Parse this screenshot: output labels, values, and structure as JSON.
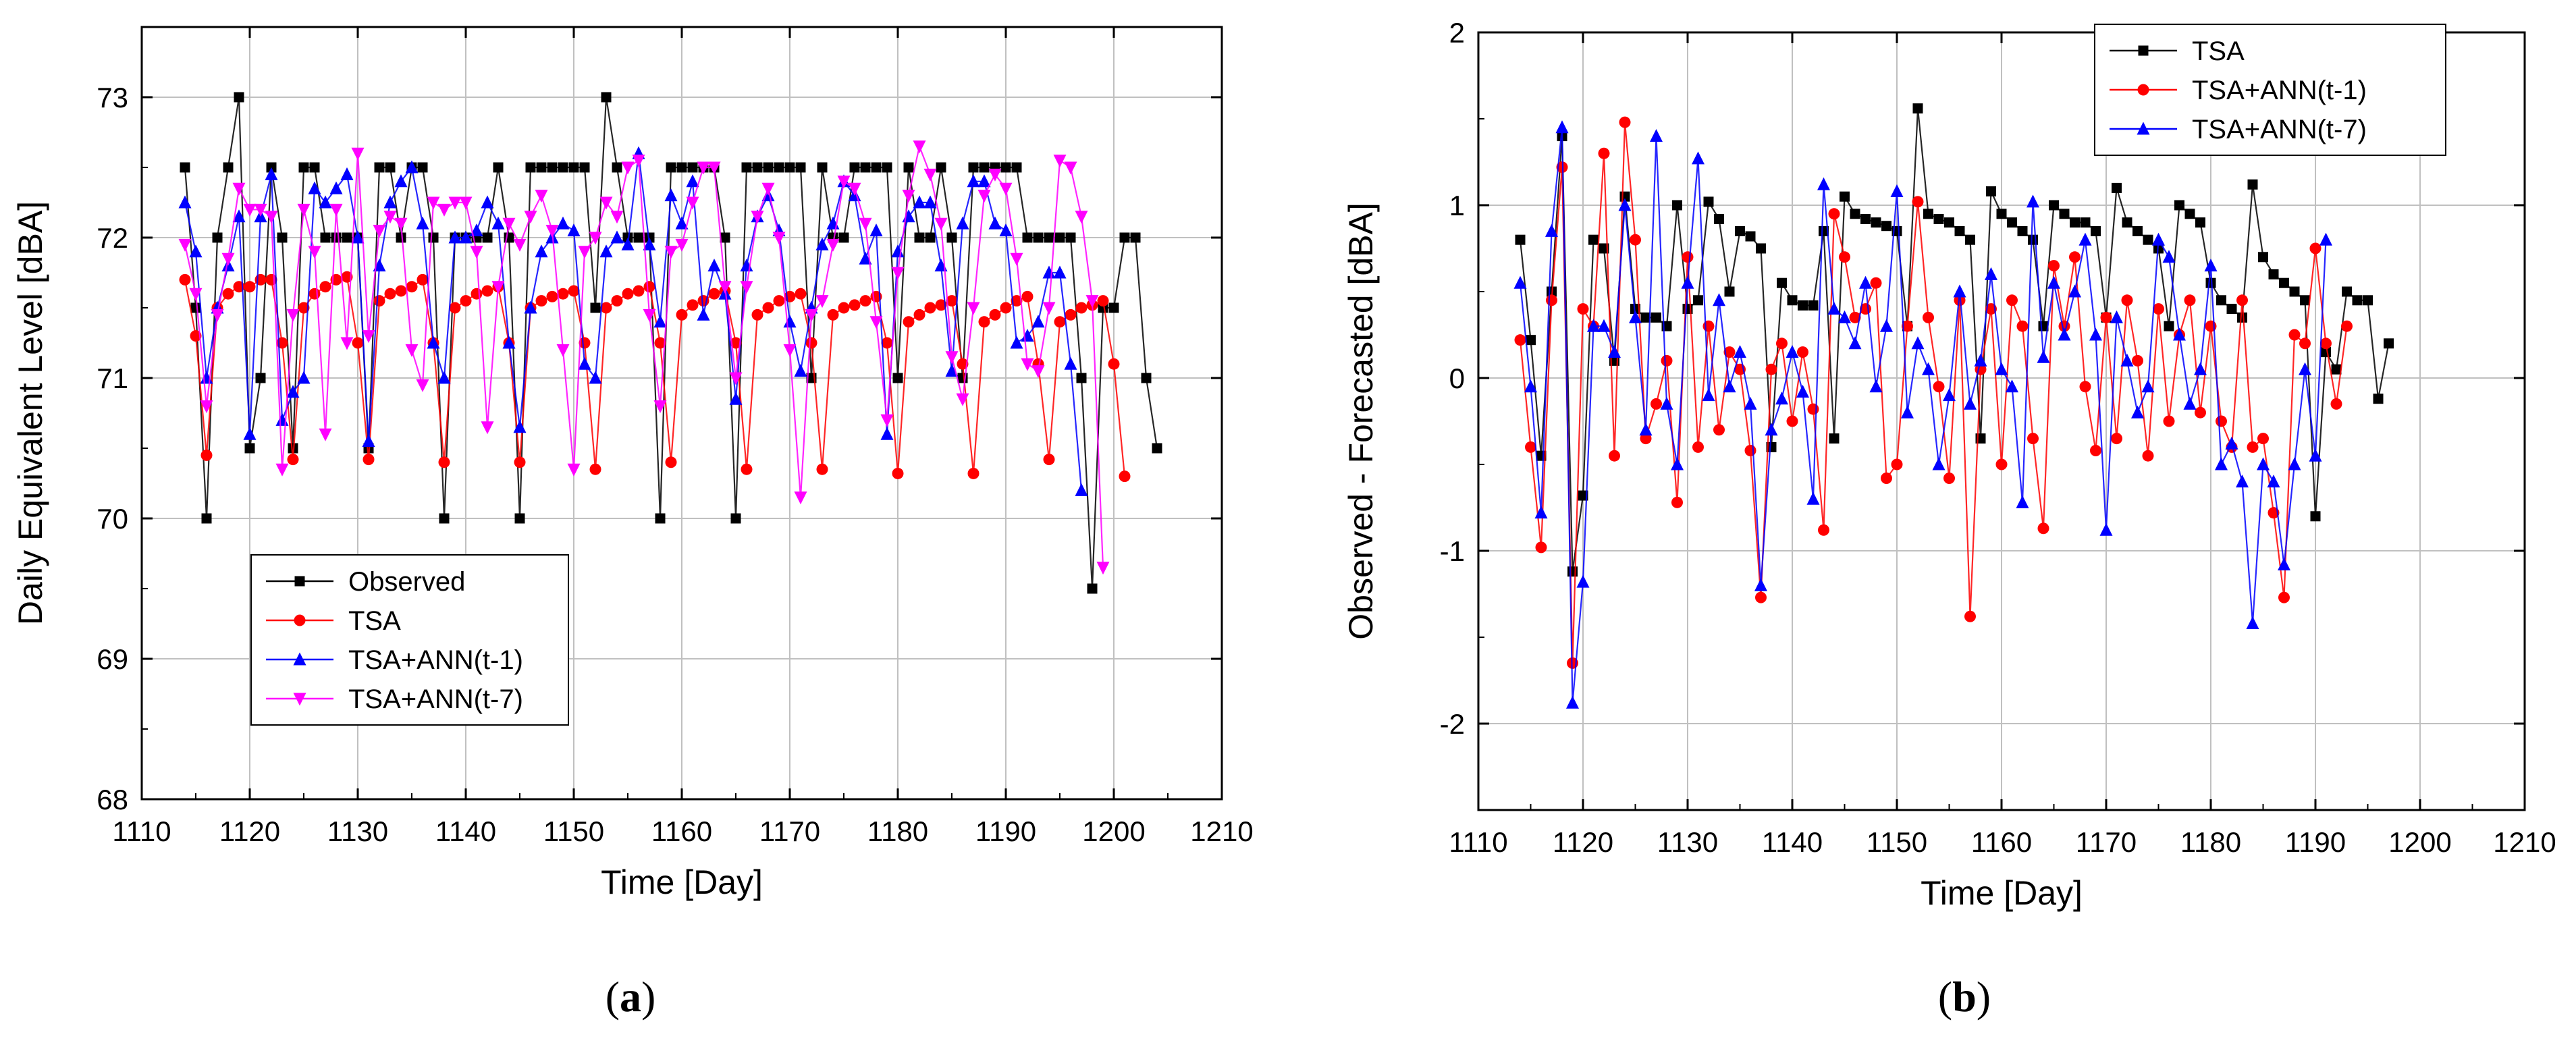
{
  "captions": {
    "a": "a",
    "b": "b"
  },
  "colors": {
    "observed": "#000000",
    "tsa": "#ff0000",
    "ann1": "#0000ff",
    "ann7": "#ff00ff",
    "grid": "#c0c0c0"
  },
  "chart_data": [
    {
      "type": "line",
      "title": "",
      "xlabel": "Time [Day]",
      "ylabel": "Daily Equivalent Level [dBA]",
      "xlim": [
        1110,
        1210
      ],
      "ylim": [
        68,
        73.5
      ],
      "xticks": [
        1110,
        1120,
        1130,
        1140,
        1150,
        1160,
        1170,
        1180,
        1190,
        1200,
        1210
      ],
      "yticks": [
        68,
        69,
        70,
        71,
        72,
        73
      ],
      "grid": true,
      "legend_position": "bottom-left",
      "x_start": 1114,
      "series": [
        {
          "name": "Observed",
          "color": "#000000",
          "marker": "square",
          "values": [
            72.5,
            71.5,
            70,
            72,
            72.5,
            73,
            70.5,
            71,
            72.5,
            72,
            70.5,
            72.5,
            72.5,
            72,
            72,
            72,
            72,
            70.5,
            72.5,
            72.5,
            72,
            72.5,
            72.5,
            72,
            70,
            72,
            72,
            72,
            72,
            72.5,
            72,
            70,
            72.5,
            72.5,
            72.5,
            72.5,
            72.5,
            72.5,
            71.5,
            73,
            72.5,
            72,
            72,
            72,
            70,
            72.5,
            72.5,
            72.5,
            72.5,
            72.5,
            72,
            70,
            72.5,
            72.5,
            72.5,
            72.5,
            72.5,
            72.5,
            71,
            72.5,
            72,
            72,
            72.5,
            72.5,
            72.5,
            72.5,
            71,
            72.5,
            72,
            72,
            72.5,
            72,
            71,
            72.5,
            72.5,
            72.5,
            72.5,
            72.5,
            72,
            72,
            72,
            72,
            72,
            71,
            69.5,
            71.5,
            71.5,
            72,
            72,
            71,
            70.5
          ]
        },
        {
          "name": "TSA",
          "color": "#ff0000",
          "marker": "circle",
          "values": [
            71.7,
            71.3,
            70.45,
            71.5,
            71.6,
            71.65,
            71.65,
            71.7,
            71.7,
            71.25,
            70.42,
            71.5,
            71.6,
            71.65,
            71.7,
            71.72,
            71.25,
            70.42,
            71.55,
            71.6,
            71.62,
            71.65,
            71.7,
            71.25,
            70.4,
            71.5,
            71.55,
            71.6,
            71.62,
            71.65,
            71.25,
            70.4,
            71.5,
            71.55,
            71.58,
            71.6,
            71.62,
            71.25,
            70.35,
            71.5,
            71.55,
            71.6,
            71.62,
            71.65,
            71.25,
            70.4,
            71.45,
            71.52,
            71.55,
            71.6,
            71.62,
            71.25,
            70.35,
            71.45,
            71.5,
            71.55,
            71.58,
            71.6,
            71.25,
            70.35,
            71.45,
            71.5,
            71.52,
            71.55,
            71.58,
            71.25,
            70.32,
            71.4,
            71.45,
            71.5,
            71.52,
            71.55,
            71.1,
            70.32,
            71.4,
            71.45,
            71.5,
            71.55,
            71.58,
            71.1,
            70.42,
            71.4,
            71.45,
            71.5,
            71.52,
            71.55,
            71.1,
            70.3
          ]
        },
        {
          "name": "TSA+ANN(t-1)",
          "color": "#0000ff",
          "marker": "triangle-up",
          "values": [
            72.25,
            71.9,
            71,
            71.5,
            71.8,
            72.15,
            70.6,
            72.15,
            72.45,
            70.7,
            70.9,
            71,
            72.35,
            72.25,
            72.35,
            72.45,
            72,
            70.55,
            71.8,
            72.25,
            72.4,
            72.5,
            72.1,
            71.25,
            71,
            72,
            72,
            72.05,
            72.25,
            72.1,
            71.25,
            70.65,
            71.5,
            71.9,
            72,
            72.1,
            72.05,
            71.1,
            71,
            71.9,
            72,
            71.95,
            72.6,
            71.95,
            71.4,
            72.3,
            72.1,
            72.4,
            71.45,
            71.8,
            71.6,
            70.85,
            71.8,
            72.15,
            72.3,
            72.05,
            71.4,
            71.05,
            71.5,
            71.95,
            72.1,
            72.4,
            72.3,
            71.85,
            72.05,
            70.6,
            71.9,
            72.15,
            72.25,
            72.25,
            71.8,
            71.05,
            72.1,
            72.4,
            72.4,
            72.1,
            72.05,
            71.25,
            71.3,
            71.4,
            71.75,
            71.75,
            71.1,
            70.2
          ]
        },
        {
          "name": "TSA+ANN(t-7)",
          "color": "#ff00ff",
          "marker": "triangle-down",
          "values": [
            71.95,
            71.6,
            70.8,
            71.45,
            71.85,
            72.35,
            72.2,
            72.2,
            72.15,
            70.35,
            71.45,
            72.2,
            71.9,
            70.6,
            72.2,
            71.25,
            72.6,
            71.3,
            72.05,
            72.15,
            72.1,
            71.2,
            70.95,
            72.25,
            72.2,
            72.25,
            72.25,
            71.9,
            70.65,
            71.65,
            72.1,
            71.95,
            72.15,
            72.3,
            72.05,
            71.2,
            70.35,
            71.9,
            72.0,
            72.25,
            72.15,
            72.5,
            72.55,
            71.45,
            70.8,
            71.9,
            71.95,
            72.25,
            72.5,
            72.5,
            71.65,
            71.0,
            71.65,
            72.15,
            72.35,
            72.0,
            71.2,
            70.15,
            71.45,
            71.55,
            71.95,
            72.4,
            72.35,
            72.1,
            71.4,
            70.7,
            71.75,
            72.3,
            72.65,
            72.45,
            72.1,
            71.15,
            70.85,
            71.5,
            72.3,
            72.45,
            72.35,
            71.85,
            71.1,
            71.05,
            71.5,
            72.55,
            72.5,
            72.15,
            71.55,
            69.65
          ]
        }
      ]
    },
    {
      "type": "line",
      "title": "",
      "xlabel": "Time [Day]",
      "ylabel": "Observed - Forecasted [dBA]",
      "xlim": [
        1110,
        1210
      ],
      "ylim": [
        -2.5,
        2
      ],
      "xticks": [
        1110,
        1120,
        1130,
        1140,
        1150,
        1160,
        1170,
        1180,
        1190,
        1200,
        1210
      ],
      "yticks": [
        -2,
        -1,
        0,
        1,
        2
      ],
      "grid": true,
      "legend_position": "top-right",
      "x_start": 1114,
      "series": [
        {
          "name": "TSA",
          "color": "#000000",
          "marker": "square",
          "values": [
            0.8,
            0.22,
            -0.45,
            0.5,
            1.4,
            -1.12,
            -0.68,
            0.8,
            0.75,
            0.1,
            1.05,
            0.4,
            0.35,
            0.35,
            0.3,
            1.0,
            0.4,
            0.45,
            1.02,
            0.92,
            0.5,
            0.85,
            0.82,
            0.75,
            -0.4,
            0.55,
            0.45,
            0.42,
            0.42,
            0.85,
            -0.35,
            1.05,
            0.95,
            0.92,
            0.9,
            0.88,
            0.85,
            0.3,
            1.56,
            0.95,
            0.92,
            0.9,
            0.85,
            0.8,
            -0.35,
            1.08,
            0.95,
            0.9,
            0.85,
            0.8,
            0.3,
            1.0,
            0.95,
            0.9,
            0.9,
            0.85,
            0.35,
            1.1,
            0.9,
            0.85,
            0.8,
            0.75,
            0.3,
            1.0,
            0.95,
            0.9,
            0.55,
            0.45,
            0.4,
            0.35,
            1.12,
            0.7,
            0.6,
            0.55,
            0.5,
            0.45,
            -0.8,
            0.15,
            0.05,
            0.5,
            0.45,
            0.45,
            -0.12,
            0.2
          ]
        },
        {
          "name": "TSA+ANN(t-1)",
          "color": "#ff0000",
          "marker": "circle",
          "values": [
            0.22,
            -0.4,
            -0.98,
            0.45,
            1.22,
            -1.65,
            0.4,
            0.3,
            1.3,
            -0.45,
            1.48,
            0.8,
            -0.35,
            -0.15,
            0.1,
            -0.72,
            0.7,
            -0.4,
            0.3,
            -0.3,
            0.15,
            0.05,
            -0.42,
            -1.27,
            0.05,
            0.2,
            -0.25,
            0.15,
            -0.18,
            -0.88,
            0.95,
            0.7,
            0.35,
            0.4,
            0.55,
            -0.58,
            -0.5,
            0.3,
            1.02,
            0.35,
            -0.05,
            -0.58,
            0.45,
            -1.38,
            0.05,
            0.4,
            -0.5,
            0.45,
            0.3,
            -0.35,
            -0.87,
            0.65,
            0.3,
            0.7,
            -0.05,
            -0.42,
            0.35,
            -0.35,
            0.45,
            0.1,
            -0.45,
            0.4,
            -0.25,
            0.25,
            0.45,
            -0.2,
            0.3,
            -0.25,
            -0.4,
            0.45,
            -0.4,
            -0.35,
            -0.78,
            -1.27,
            0.25,
            0.2,
            0.75,
            0.2,
            -0.15,
            0.3
          ]
        },
        {
          "name": "TSA+ANN(t-7)",
          "color": "#0000ff",
          "marker": "triangle-up",
          "values": [
            0.55,
            -0.05,
            -0.78,
            0.85,
            1.45,
            -1.88,
            -1.18,
            0.3,
            0.3,
            0.15,
            1.0,
            0.35,
            -0.3,
            1.4,
            -0.15,
            -0.5,
            0.55,
            1.27,
            -0.1,
            0.45,
            -0.05,
            0.15,
            -0.15,
            -1.2,
            -0.3,
            -0.12,
            0.15,
            -0.08,
            -0.7,
            1.12,
            0.4,
            0.35,
            0.2,
            0.55,
            -0.05,
            0.3,
            1.08,
            -0.2,
            0.2,
            0.05,
            -0.5,
            -0.1,
            0.5,
            -0.15,
            0.1,
            0.6,
            0.05,
            -0.05,
            -0.72,
            1.02,
            0.12,
            0.55,
            0.25,
            0.5,
            0.8,
            0.25,
            -0.88,
            0.35,
            0.1,
            -0.2,
            -0.05,
            0.8,
            0.7,
            0.25,
            -0.15,
            0.05,
            0.65,
            -0.5,
            -0.38,
            -0.6,
            -1.42,
            -0.5,
            -0.6,
            -1.08,
            -0.5,
            0.05,
            -0.45,
            0.8
          ]
        }
      ]
    }
  ]
}
